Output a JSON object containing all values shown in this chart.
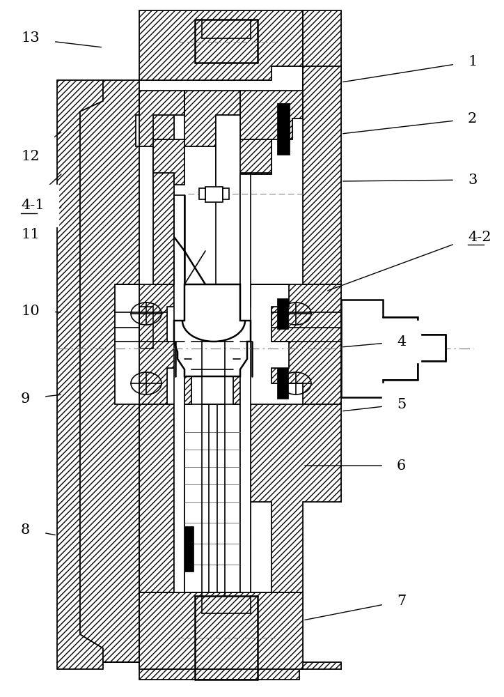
{
  "bg_color": "#ffffff",
  "line_color": "#000000",
  "figsize": [
    7.24,
    10.0
  ],
  "dpi": 100,
  "labels_data": [
    [
      "1",
      672,
      88,
      490,
      118,
      false
    ],
    [
      "2",
      672,
      170,
      490,
      192,
      false
    ],
    [
      "3",
      672,
      258,
      490,
      260,
      false
    ],
    [
      "4-2",
      672,
      340,
      468,
      418,
      true
    ],
    [
      "4",
      570,
      490,
      490,
      498,
      false
    ],
    [
      "5",
      570,
      580,
      490,
      590,
      false
    ],
    [
      "6",
      570,
      668,
      435,
      668,
      false
    ],
    [
      "7",
      570,
      862,
      435,
      890,
      false
    ],
    [
      "8",
      30,
      760,
      82,
      768,
      false
    ],
    [
      "9",
      30,
      572,
      90,
      566,
      false
    ],
    [
      "10",
      30,
      446,
      90,
      448,
      false
    ],
    [
      "11",
      30,
      336,
      90,
      295,
      false
    ],
    [
      "4-1",
      30,
      295,
      90,
      248,
      true
    ],
    [
      "12",
      30,
      225,
      90,
      188,
      false
    ],
    [
      "13",
      30,
      55,
      148,
      68,
      false
    ]
  ]
}
